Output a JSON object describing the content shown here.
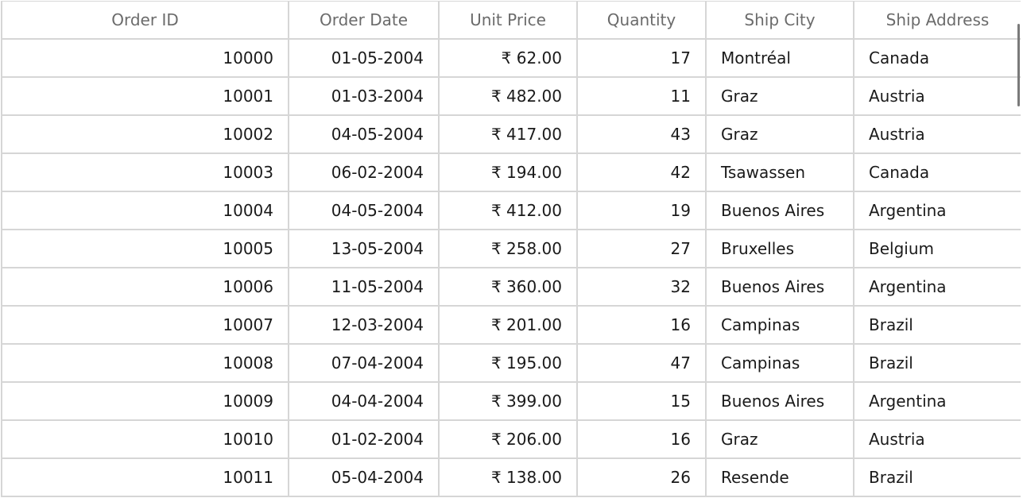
{
  "columns": [
    "Order ID",
    "Order Date",
    "Unit Price",
    "Quantity",
    "Ship City",
    "Ship Address"
  ],
  "rows": [
    [
      "10000",
      "01-05-2004",
      "₹ 62.00",
      "17",
      "Montréal",
      "Canada"
    ],
    [
      "10001",
      "01-03-2004",
      "₹ 482.00",
      "11",
      "Graz",
      "Austria"
    ],
    [
      "10002",
      "04-05-2004",
      "₹ 417.00",
      "43",
      "Graz",
      "Austria"
    ],
    [
      "10003",
      "06-02-2004",
      "₹ 194.00",
      "42",
      "Tsawassen",
      "Canada"
    ],
    [
      "10004",
      "04-05-2004",
      "₹ 412.00",
      "19",
      "Buenos Aires",
      "Argentina"
    ],
    [
      "10005",
      "13-05-2004",
      "₹ 258.00",
      "27",
      "Bruxelles",
      "Belgium"
    ],
    [
      "10006",
      "11-05-2004",
      "₹ 360.00",
      "32",
      "Buenos Aires",
      "Argentina"
    ],
    [
      "10007",
      "12-03-2004",
      "₹ 201.00",
      "16",
      "Campinas",
      "Brazil"
    ],
    [
      "10008",
      "07-04-2004",
      "₹ 195.00",
      "47",
      "Campinas",
      "Brazil"
    ],
    [
      "10009",
      "04-04-2004",
      "₹ 399.00",
      "15",
      "Buenos Aires",
      "Argentina"
    ],
    [
      "10010",
      "01-02-2004",
      "₹ 206.00",
      "16",
      "Graz",
      "Austria"
    ],
    [
      "10011",
      "05-04-2004",
      "₹ 138.00",
      "26",
      "Resende",
      "Brazil"
    ]
  ]
}
